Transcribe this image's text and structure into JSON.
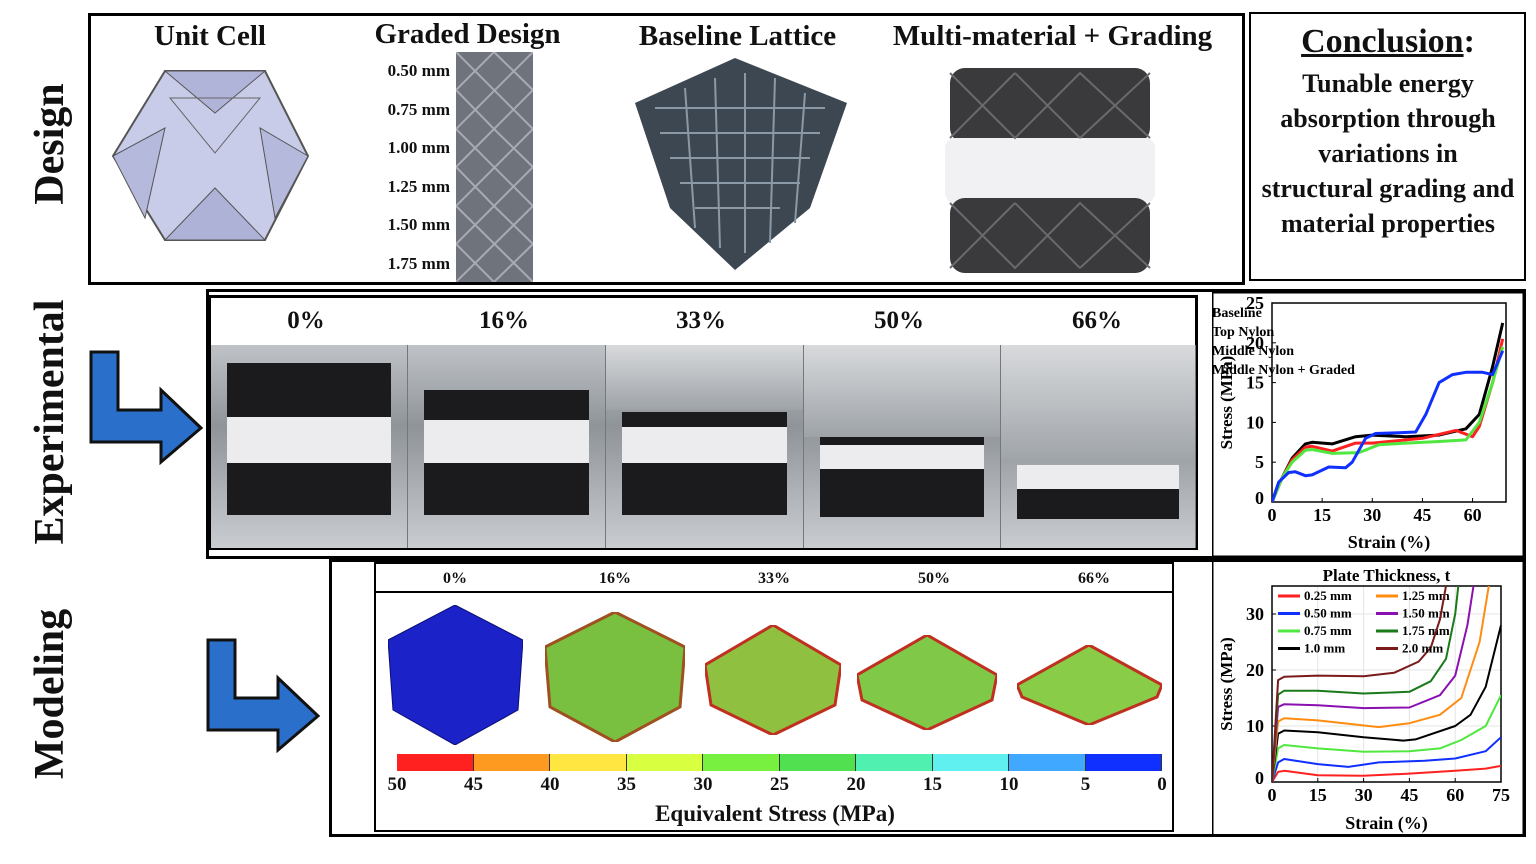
{
  "rows": {
    "design": "Design",
    "experimental": "Experimental",
    "modeling": "Modeling"
  },
  "design": {
    "headings": [
      "Unit Cell",
      "Graded Design",
      "Baseline Lattice",
      "Multi-material + Grading"
    ],
    "thicknesses": [
      "0.50 mm",
      "0.75 mm",
      "1.00 mm",
      "1.25 mm",
      "1.50 mm",
      "1.75 mm"
    ]
  },
  "conclusion": {
    "title": "Conclusion",
    "colon": ":",
    "text": "Tunable energy absorption through variations in structural grading and material properties"
  },
  "experimental": {
    "strains": [
      "0%",
      "16%",
      "33%",
      "50%",
      "66%"
    ]
  },
  "modeling": {
    "strains": [
      "0%",
      "16%",
      "33%",
      "50%",
      "66%"
    ],
    "colorbar": {
      "label": "Equivalent Stress (MPa)",
      "ticks": [
        "50",
        "45",
        "40",
        "35",
        "30",
        "25",
        "20",
        "15",
        "10",
        "5",
        "0"
      ],
      "colors": [
        "#ff2020",
        "#ff9a20",
        "#ffe640",
        "#d8ff40",
        "#78f040",
        "#50e050",
        "#50f0b0",
        "#60f0f0",
        "#40a8ff",
        "#1030ff"
      ]
    }
  },
  "arrow_color": "#2a6fc9",
  "chart_data": [
    {
      "type": "line",
      "title": "",
      "xlabel": "Strain (%)",
      "ylabel": "Stress (MPa)",
      "xlim": [
        0,
        70
      ],
      "ylim": [
        0,
        25
      ],
      "xticks": [
        0,
        15,
        30,
        45,
        60
      ],
      "yticks": [
        0,
        5,
        10,
        15,
        20,
        25
      ],
      "legend": "top-left",
      "grid": false,
      "series": [
        {
          "name": "Baseline",
          "color": "#000000",
          "points": [
            [
              0,
              0
            ],
            [
              3,
              3
            ],
            [
              6,
              5.5
            ],
            [
              10,
              7.3
            ],
            [
              12,
              7.5
            ],
            [
              18,
              7.3
            ],
            [
              25,
              8.2
            ],
            [
              30,
              8.4
            ],
            [
              40,
              8.2
            ],
            [
              50,
              8.4
            ],
            [
              58,
              9.2
            ],
            [
              62,
              11
            ],
            [
              66,
              17
            ],
            [
              69,
              22.5
            ]
          ]
        },
        {
          "name": "Top Nylon",
          "color": "#ff2020",
          "points": [
            [
              0,
              0
            ],
            [
              3,
              3
            ],
            [
              6,
              5.3
            ],
            [
              10,
              6.9
            ],
            [
              12,
              7
            ],
            [
              18,
              6.4
            ],
            [
              25,
              7.4
            ],
            [
              30,
              7.4
            ],
            [
              35,
              7.6
            ],
            [
              45,
              8
            ],
            [
              55,
              9
            ],
            [
              60,
              8.2
            ],
            [
              62,
              9.5
            ],
            [
              66,
              15
            ],
            [
              69,
              20.5
            ]
          ]
        },
        {
          "name": "Middle Nylon",
          "color": "#50e840",
          "points": [
            [
              0,
              0
            ],
            [
              3,
              3
            ],
            [
              6,
              5
            ],
            [
              10,
              6.5
            ],
            [
              12,
              6.6
            ],
            [
              18,
              6.1
            ],
            [
              26,
              6.2
            ],
            [
              32,
              7.2
            ],
            [
              40,
              7.4
            ],
            [
              50,
              7.6
            ],
            [
              58,
              7.8
            ],
            [
              62,
              10
            ],
            [
              66,
              15
            ],
            [
              69,
              19.5
            ]
          ]
        },
        {
          "name": "Middle Nylon + Graded",
          "color": "#1030ff",
          "points": [
            [
              0,
              0
            ],
            [
              2,
              2.5
            ],
            [
              5,
              3.7
            ],
            [
              7,
              3.8
            ],
            [
              10,
              3.3
            ],
            [
              12,
              3.4
            ],
            [
              17,
              4.4
            ],
            [
              22,
              4.3
            ],
            [
              24,
              5
            ],
            [
              28,
              8
            ],
            [
              31,
              8.6
            ],
            [
              38,
              8.7
            ],
            [
              43,
              8.8
            ],
            [
              46,
              11
            ],
            [
              50,
              15
            ],
            [
              54,
              16
            ],
            [
              58,
              16.3
            ],
            [
              63,
              16.3
            ],
            [
              66,
              16
            ],
            [
              69,
              19
            ]
          ]
        }
      ]
    },
    {
      "type": "line",
      "title": "Plate Thickness, t",
      "xlabel": "Strain (%)",
      "ylabel": "Stress (MPa)",
      "xlim": [
        0,
        75
      ],
      "ylim": [
        0,
        35
      ],
      "xticks": [
        0,
        15,
        30,
        45,
        60,
        75
      ],
      "yticks": [
        0,
        10,
        20,
        30
      ],
      "legend": "top-left",
      "grid": true,
      "series": [
        {
          "name": "0.25 mm",
          "color": "#ff2020",
          "points": [
            [
              0,
              0
            ],
            [
              2,
              1.8
            ],
            [
              4,
              2
            ],
            [
              15,
              1.2
            ],
            [
              30,
              1.1
            ],
            [
              45,
              1.5
            ],
            [
              60,
              2
            ],
            [
              70,
              2.4
            ],
            [
              75,
              2.9
            ]
          ]
        },
        {
          "name": "0.50 mm",
          "color": "#1030ff",
          "points": [
            [
              0,
              0
            ],
            [
              2,
              3.5
            ],
            [
              4,
              4.1
            ],
            [
              15,
              3.2
            ],
            [
              25,
              2.7
            ],
            [
              35,
              3.5
            ],
            [
              50,
              3.8
            ],
            [
              60,
              4.2
            ],
            [
              70,
              5.5
            ],
            [
              75,
              8
            ]
          ]
        },
        {
          "name": "0.75 mm",
          "color": "#50e840",
          "points": [
            [
              0,
              0
            ],
            [
              2,
              6
            ],
            [
              4,
              6.6
            ],
            [
              15,
              6
            ],
            [
              30,
              5.4
            ],
            [
              45,
              5.5
            ],
            [
              55,
              6
            ],
            [
              62,
              7.5
            ],
            [
              70,
              10
            ],
            [
              75,
              15.5
            ]
          ]
        },
        {
          "name": "1.0 mm",
          "color": "#000000",
          "points": [
            [
              0,
              0
            ],
            [
              2,
              8.6
            ],
            [
              4,
              9.2
            ],
            [
              15,
              8.9
            ],
            [
              30,
              8
            ],
            [
              43,
              7.4
            ],
            [
              47,
              7.6
            ],
            [
              60,
              10
            ],
            [
              65,
              12
            ],
            [
              70,
              17
            ],
            [
              75,
              28
            ]
          ]
        },
        {
          "name": "1.25 mm",
          "color": "#ff8c10",
          "points": [
            [
              0,
              0
            ],
            [
              2,
              10.8
            ],
            [
              4,
              11.4
            ],
            [
              15,
              11
            ],
            [
              35,
              9.8
            ],
            [
              45,
              10.5
            ],
            [
              55,
              12
            ],
            [
              62,
              15
            ],
            [
              68,
              25
            ],
            [
              71,
              35
            ]
          ]
        },
        {
          "name": "1.50 mm",
          "color": "#8a10b0",
          "points": [
            [
              0,
              0
            ],
            [
              2,
              13.4
            ],
            [
              4,
              13.9
            ],
            [
              15,
              13.7
            ],
            [
              30,
              13.2
            ],
            [
              45,
              13.3
            ],
            [
              55,
              15.5
            ],
            [
              60,
              19
            ],
            [
              64,
              28
            ],
            [
              66,
              35
            ]
          ]
        },
        {
          "name": "1.75 mm",
          "color": "#1a7a1a",
          "points": [
            [
              0,
              0
            ],
            [
              2,
              15.6
            ],
            [
              4,
              16.3
            ],
            [
              15,
              16.3
            ],
            [
              30,
              15.8
            ],
            [
              45,
              16.1
            ],
            [
              52,
              18
            ],
            [
              57,
              22
            ],
            [
              60,
              30
            ],
            [
              61,
              35
            ]
          ]
        },
        {
          "name": "2.0 mm",
          "color": "#7a1a1a",
          "points": [
            [
              0,
              0
            ],
            [
              2,
              18.2
            ],
            [
              4,
              18.8
            ],
            [
              15,
              19
            ],
            [
              30,
              18.9
            ],
            [
              40,
              19.5
            ],
            [
              48,
              21.5
            ],
            [
              52,
              24
            ],
            [
              55,
              29
            ],
            [
              57,
              35
            ]
          ]
        }
      ]
    }
  ]
}
